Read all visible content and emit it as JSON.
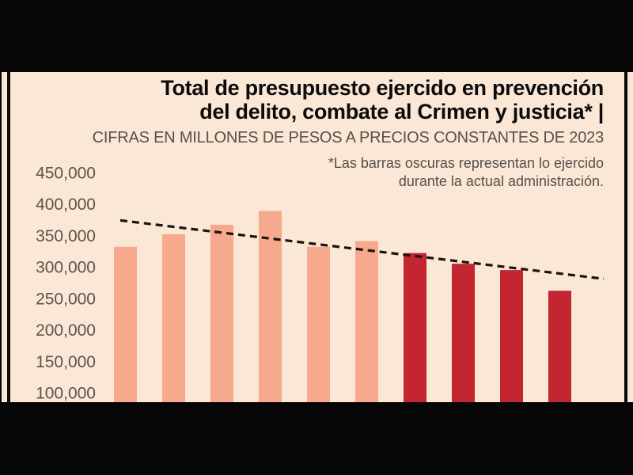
{
  "colors": {
    "background": "#060606",
    "panel": "#fbe7d5",
    "bar_light": "#f6a98c",
    "bar_dark": "#c32531",
    "text_gray": "#56504a",
    "trendline": "#1a1410"
  },
  "header": {
    "title_line1": "Total de presupuesto ejercido en prevención",
    "title_line2": "del delito, combate al Crimen y justicia* |",
    "subtitle": "CIFRAS EN MILLONES DE PESOS A PRECIOS CONSTANTES DE 2023",
    "note_line1": "*Las barras oscuras representan lo ejercido",
    "note_line2": "durante la actual administración."
  },
  "chart_data": {
    "type": "bar",
    "title": "Total de presupuesto ejercido en prevención del delito, combate al Crimen y justicia*",
    "subtitle": "CIFRAS EN MILLONES DE PESOS A PRECIOS CONSTANTES DE 2023",
    "note": "*Las barras oscuras representan lo ejercido durante la actual administración.",
    "unit": "millones de pesos, precios constantes de 2023",
    "values": [
      332000,
      352000,
      367000,
      389000,
      332000,
      341000,
      322000,
      305000,
      295000,
      262000
    ],
    "bar_styles": [
      "light",
      "light",
      "light",
      "light",
      "light",
      "light",
      "dark",
      "dark",
      "dark",
      "dark"
    ],
    "dark_bar_meaning": "ejercido durante la actual administración",
    "x_labels_visible": false,
    "y_ticks": [
      450000,
      400000,
      350000,
      300000,
      250000,
      200000,
      150000,
      100000
    ],
    "y_tick_labels": [
      "450,000",
      "400,000",
      "350,000",
      "300,000",
      "250,000",
      "200,000",
      "150,000",
      "100,000"
    ],
    "ylim": [
      100000,
      450000
    ],
    "grid": false,
    "legend_position": "none",
    "trendline": {
      "style": "dashed",
      "start_value": 374000,
      "end_value": 281000,
      "direction": "decreasing"
    }
  }
}
